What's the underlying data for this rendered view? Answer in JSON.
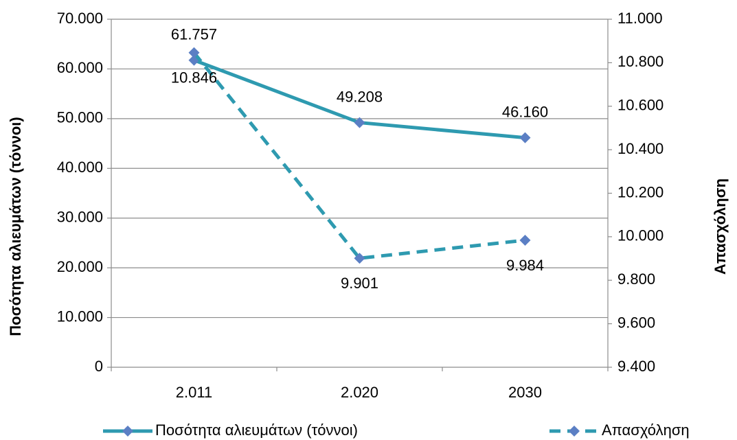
{
  "chart_data": {
    "type": "line",
    "y_axis_label": "Ποσότητα αλιευμάτων (τόννοι)",
    "y2_axis_label": "Απασχόληση",
    "categories": [
      "2.011",
      "2.020",
      "2030"
    ],
    "series": [
      {
        "name": "Ποσότητα αλιευμάτων (τόννοι)",
        "color": "#2e9ab0",
        "marker_color": "#5b7fc4",
        "dash": false,
        "values": [
          61757,
          49208,
          46160
        ],
        "value_labels": [
          "61.757",
          "49.208",
          "46.160"
        ]
      },
      {
        "name": "Απασχόληση",
        "color": "#2e9ab0",
        "marker_color": "#5b7fc4",
        "dash": true,
        "axis": "y2",
        "values": [
          10846,
          9901,
          9984
        ],
        "value_labels": [
          "10.846",
          "9.901",
          "9.984"
        ]
      }
    ],
    "ylim": [
      0,
      70000
    ],
    "yticks": [
      0,
      {
        "value": 10000,
        "label": "10.000"
      },
      {
        "value": 20000,
        "label": "20.000"
      },
      {
        "value": 30000,
        "label": "30.000"
      },
      {
        "value": 40000,
        "label": "40.000"
      },
      {
        "value": 50000,
        "label": "50.000"
      },
      {
        "value": 60000,
        "label": "60.000"
      },
      {
        "value": 70000,
        "label": "70.000"
      }
    ],
    "y2lim": [
      9400,
      11000
    ],
    "y2ticks": [
      {
        "value": 9400,
        "label": "9.400"
      },
      {
        "value": 9600,
        "label": "9.600"
      },
      {
        "value": 9800,
        "label": "9.800"
      },
      {
        "value": 10000,
        "label": "10.000"
      },
      {
        "value": 10200,
        "label": "10.200"
      },
      {
        "value": 10400,
        "label": "10.400"
      },
      {
        "value": 10600,
        "label": "10.600"
      },
      {
        "value": 10800,
        "label": "10.800"
      },
      {
        "value": 11000,
        "label": "11.000"
      }
    ],
    "grid": true,
    "legend": "bottom"
  }
}
